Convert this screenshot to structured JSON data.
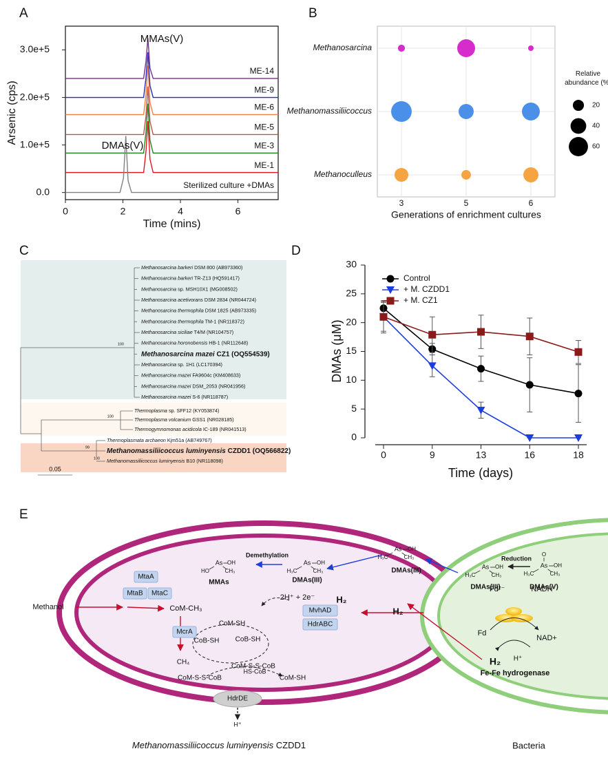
{
  "panels": [
    "A",
    "B",
    "C",
    "D",
    "E"
  ],
  "chart_data": [
    {
      "type": "line",
      "x": [
        0,
        1.9,
        2.02,
        2.1,
        2.18,
        2.3,
        2.72,
        2.8,
        2.87,
        2.94,
        3.05,
        7.4
      ],
      "xlim": [
        0,
        7.4
      ],
      "xticks": [
        0,
        2,
        4,
        6
      ],
      "ylim": [
        -15000,
        350000
      ],
      "yticks": [
        {
          "value": 0,
          "label": "0.0"
        },
        {
          "value": 100000,
          "label": "1.0e+5"
        },
        {
          "value": 200000,
          "label": "2.0e+5"
        },
        {
          "value": 300000,
          "label": "3.0e+5"
        }
      ],
      "xlabel": "Time (mins)",
      "ylabel": "Arsenic (cps)",
      "annotations": [
        "MMAs(V)",
        "DMAs(V)"
      ],
      "series": [
        {
          "name": "ME-14",
          "color": "#7b2c8e",
          "values": [
            240000,
            240000,
            240000,
            240000,
            240000,
            240000,
            240000,
            275000,
            325000,
            262000,
            240000,
            240000
          ]
        },
        {
          "name": "ME-9",
          "color": "#1f2fbf",
          "values": [
            200000,
            200000,
            200000,
            200000,
            200000,
            200000,
            200000,
            240000,
            295000,
            225000,
            200000,
            200000
          ]
        },
        {
          "name": "ME-6",
          "color": "#f07f3c",
          "values": [
            164000,
            164000,
            164000,
            164000,
            164000,
            164000,
            164000,
            205000,
            267000,
            190000,
            164000,
            164000
          ]
        },
        {
          "name": "ME-5",
          "color": "#c0504d",
          "values": [
            122000,
            122000,
            122000,
            122000,
            122000,
            122000,
            122000,
            160000,
            223000,
            150000,
            122000,
            122000
          ]
        },
        {
          "name": "ME-3",
          "color": "#1a8a1a",
          "values": [
            83000,
            83000,
            83000,
            83000,
            83000,
            83000,
            83000,
            125000,
            187000,
            110000,
            83000,
            83000
          ]
        },
        {
          "name": "ME-1",
          "color": "#e0141e",
          "values": [
            42000,
            42000,
            42000,
            42000,
            42000,
            42000,
            42000,
            85000,
            150000,
            70000,
            42000,
            42000
          ]
        },
        {
          "name": "Sterilized culture +DMAs",
          "color": "#808080",
          "values": [
            0,
            0,
            30000,
            119000,
            25000,
            0,
            0,
            0,
            0,
            0,
            0,
            0
          ]
        }
      ]
    },
    {
      "type": "bubble",
      "categories": [
        "3",
        "5",
        "6"
      ],
      "xlabel": "Generations of enrichment cultures",
      "grid": true,
      "size_legend": {
        "title": "Relative abundance (%)",
        "values": [
          20,
          40,
          60
        ]
      },
      "series": [
        {
          "name": "Methanosarcina",
          "color": "#d62ccc",
          "values": [
            8,
            52,
            5
          ]
        },
        {
          "name": "Methanomassiliicoccus",
          "color": "#4a8fe8",
          "values": [
            69,
            37,
            52
          ]
        },
        {
          "name": "Methanoculleus",
          "color": "#f5a442",
          "values": [
            31,
            15,
            37
          ]
        }
      ]
    },
    {
      "type": "line",
      "categories": [
        "0",
        "9",
        "13",
        "16",
        "18"
      ],
      "ylim": [
        0,
        30
      ],
      "yticks": [
        0,
        5,
        10,
        15,
        20,
        25,
        30
      ],
      "xlabel": "Time (days)",
      "ylabel": "DMAs (μM)",
      "series": [
        {
          "name": "Control",
          "color": "#000000",
          "marker": "circle",
          "values": [
            22.5,
            15.4,
            12.0,
            9.2,
            7.7
          ],
          "errors": [
            1.2,
            1.0,
            2.2,
            4.7,
            5.0
          ]
        },
        {
          "name": "+ M. CZDD1",
          "color": "#1a3de0",
          "marker": "triangle-down",
          "values": [
            21.0,
            12.5,
            4.8,
            0,
            0
          ],
          "errors": [
            2.5,
            1.9,
            1.4,
            0,
            0
          ]
        },
        {
          "name": "+ M. CZ1",
          "color": "#8b1a1a",
          "marker": "square",
          "values": [
            21.0,
            17.9,
            18.4,
            17.6,
            14.9
          ],
          "errors": [
            2.8,
            3.1,
            2.9,
            3.2,
            2.0
          ]
        }
      ]
    }
  ],
  "tree": {
    "leaves": [
      {
        "species": "Methanosarcina barkeri",
        "strain": "DSM 800 (AB973360)"
      },
      {
        "species": "Methanosarcina barkeri",
        "strain": "TR-Z13 (HQ591417)"
      },
      {
        "species": "Methanosarcina",
        "strain": "sp. MSH10X1 (MG008502)"
      },
      {
        "species": "Methanosarcina acetivorans",
        "strain": "DSM 2834 (NR044724)"
      },
      {
        "species": "Methanosarcina thermophila",
        "strain": "DSM 1825 (AB973335)"
      },
      {
        "species": "Methanosarcina thermophila",
        "strain": "TM-1 (NR118372)"
      },
      {
        "species": "Methanosarcina siciliae",
        "strain": "T4/M (NR104757)"
      },
      {
        "species": "Methanosarcina horonobensis",
        "strain": "HB-1 (NR112648)"
      },
      {
        "species": "Methanosarcina mazei",
        "strain": "CZ1 (OQ554539)",
        "bold": true
      },
      {
        "species": "Methanosarcina",
        "strain": "sp. 1H1 (LC170394)"
      },
      {
        "species": "Methanosarcina mazei",
        "strain": "FA9604c (KM408633)"
      },
      {
        "species": "Methanosarcina mazei",
        "strain": "DSM_2053 (NR041956)"
      },
      {
        "species": "Methanosarcina mazei",
        "strain": "S-6 (NR118787)"
      },
      {
        "species": "Thermoplasma",
        "strain": "sp. SFF12 (KY053874)"
      },
      {
        "species": "Thermoplasma volcanium",
        "strain": "GSS1 (NR028185)"
      },
      {
        "species": "Thermogymnomonas acidicola",
        "strain": "IC-189 (NR041513)"
      },
      {
        "species": "Thermoplasmata archaeon",
        "strain": "Kjm51a (AB749767)"
      },
      {
        "species": "Methanomassiliicoccus luminyensis",
        "strain": "CZDD1 (OQ566822)",
        "bold": true
      },
      {
        "species": "Methanomassiliicoccus luminyensis",
        "strain": "B10 (NR118098)"
      }
    ],
    "bootstrap": [
      "100",
      "100",
      "99",
      "100"
    ],
    "scale": "0.05"
  },
  "diagram": {
    "demethylation": "Demethylation",
    "reduction": "Reduction",
    "mmas": "MMAs",
    "dmas3": "DMAs(III)",
    "dmas5": "DMAs(V)",
    "atoms": {
      "as": "As",
      "oh": "OH",
      "ch3": "CH₃",
      "h3c": "H₃C",
      "ho": "HO",
      "o": "O"
    },
    "enzymes": [
      "MtaA",
      "MtaB",
      "MtaC",
      "McrA",
      "MvhAD",
      "HdrABC",
      "HdrDE"
    ],
    "methanol": "Methanol",
    "com_ch3": "CoM-CH₃",
    "ch4": "CH₄",
    "com_sh": "CoM-SH",
    "cob_sh": "CoB-SH",
    "com_s_s_cob": "CoM-S-S-CoB",
    "hs_cob": "HS-CoB",
    "electrons": "2H⁺ + 2e⁻",
    "h2": "H₂",
    "h_plus": "H⁺",
    "fd2": "Fd²⁻",
    "fd": "Fd",
    "nadh": "NADH",
    "nad": "NAD+",
    "hydrogenase": "Fe-Fe hydrogenase",
    "organism": {
      "species": "Methanomassiliicoccus luminyensis",
      "strain": "CZDD1"
    },
    "bacteria": "Bacteria"
  }
}
